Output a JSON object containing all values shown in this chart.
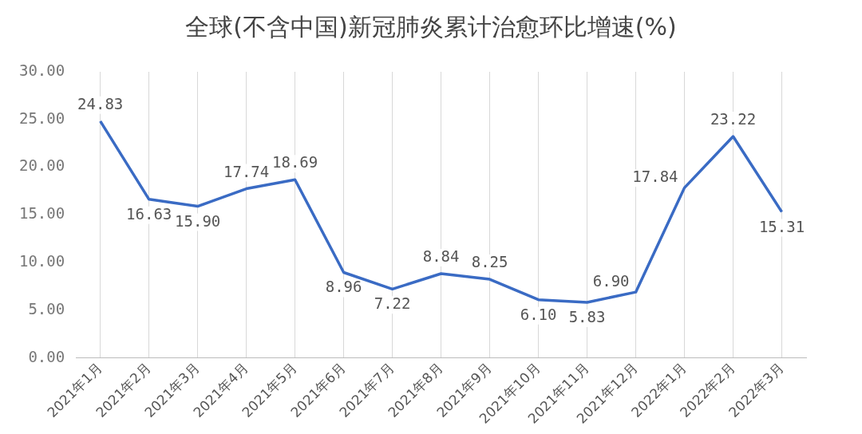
{
  "chart_data": {
    "type": "line",
    "title": "全球(不含中国)新冠肺炎累计治愈环比增速(%)",
    "categories": [
      "2021年1月",
      "2021年2月",
      "2021年3月",
      "2021年4月",
      "2021年5月",
      "2021年6月",
      "2021年7月",
      "2021年8月",
      "2021年9月",
      "2021年10月",
      "2021年11月",
      "2021年12月",
      "2022年1月",
      "2022年2月",
      "2022年3月"
    ],
    "series": [
      {
        "color": "#3a6bc4",
        "values": [
          24.83,
          16.63,
          15.9,
          17.74,
          18.69,
          8.96,
          7.22,
          8.84,
          8.25,
          6.1,
          5.83,
          6.9,
          17.84,
          23.22,
          15.31
        ],
        "value_labels": [
          "24.83",
          "16.63",
          "15.90",
          "17.74",
          "18.69",
          "8.96",
          "7.22",
          "8.84",
          "8.25",
          "6.10",
          "5.83",
          "6.90",
          "17.84",
          "23.22",
          "15.31"
        ]
      }
    ],
    "ylim": [
      0,
      30
    ],
    "yticks": [
      {
        "value": 0,
        "label": "0.00"
      },
      {
        "value": 5,
        "label": "5.00"
      },
      {
        "value": 10,
        "label": "10.00"
      },
      {
        "value": 15,
        "label": "15.00"
      },
      {
        "value": 20,
        "label": "20.00"
      },
      {
        "value": 25,
        "label": "25.00"
      },
      {
        "value": 30,
        "label": "30.00"
      }
    ],
    "grid": "x",
    "marker": "none",
    "line_style": "solid",
    "legend": false
  }
}
